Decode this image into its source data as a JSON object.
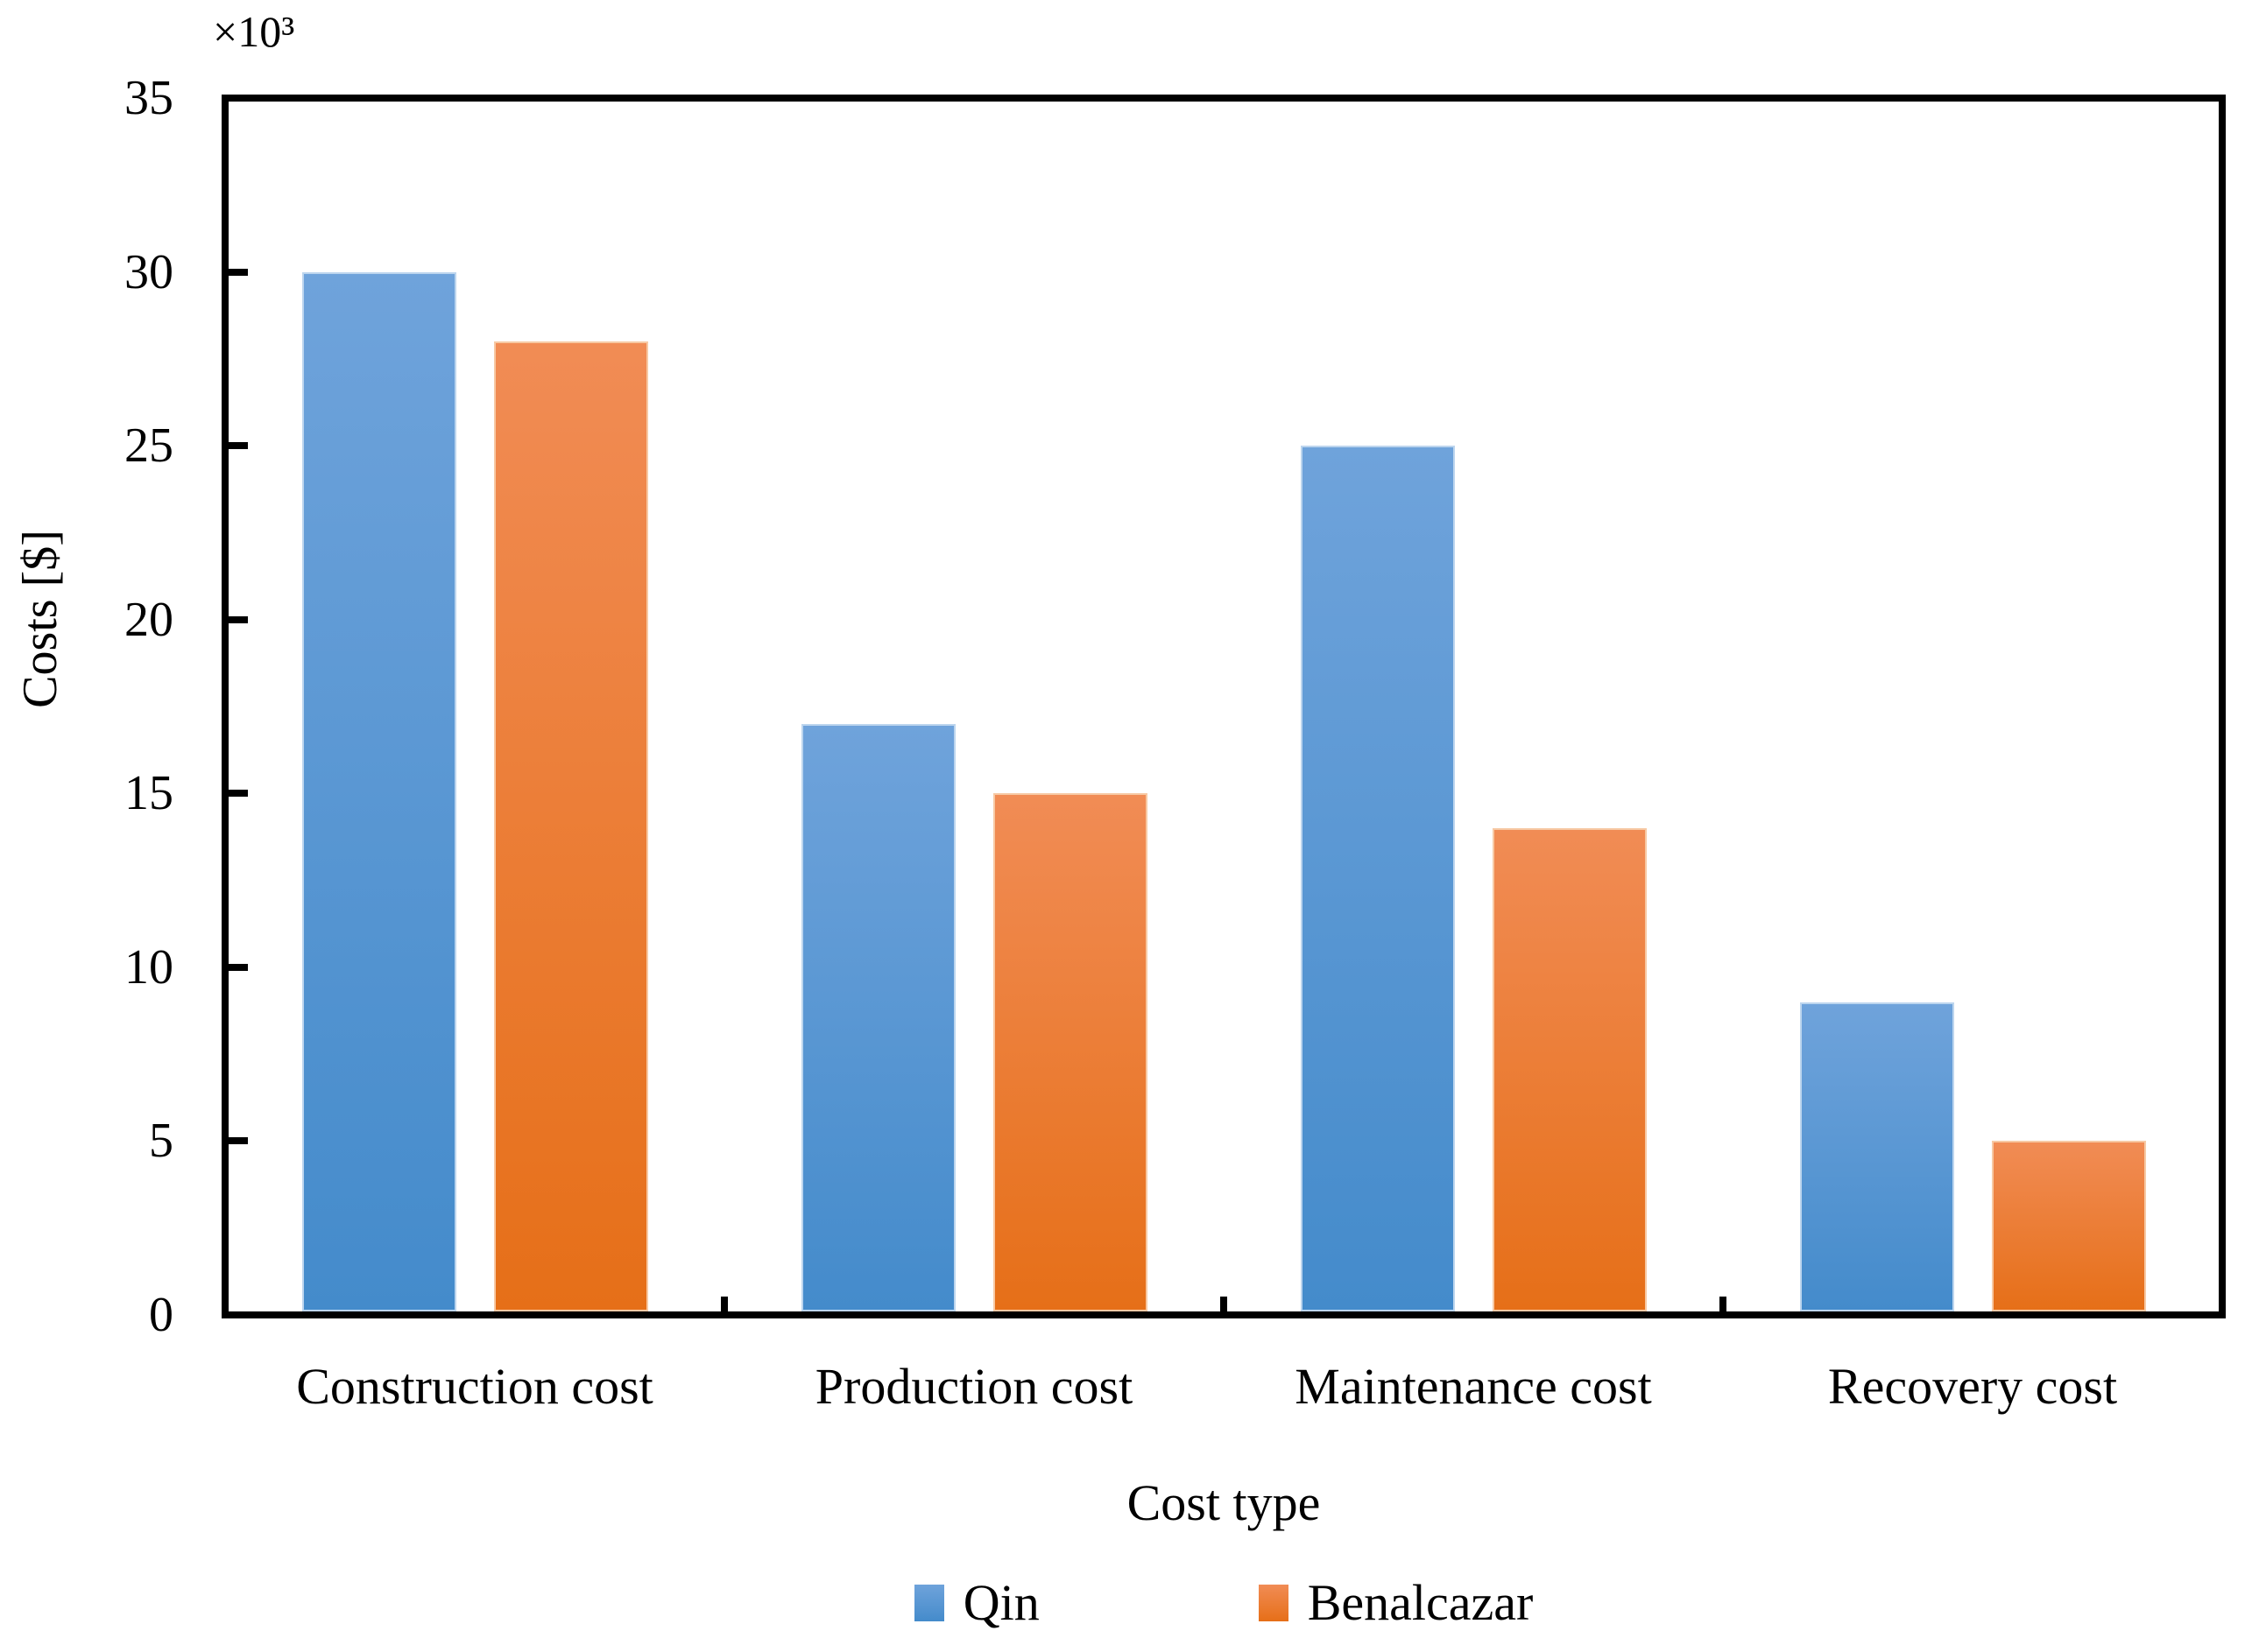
{
  "chart_data": {
    "type": "bar",
    "title": "",
    "categories": [
      "Construction cost",
      "Production cost",
      "Maintenance cost",
      "Recovery cost"
    ],
    "series": [
      {
        "name": "Qin",
        "values": [
          30,
          17,
          25,
          9
        ],
        "color": "#5B9BD5"
      },
      {
        "name": "Benalcazar",
        "values": [
          28,
          15,
          14,
          5
        ],
        "color": "#ED7D31"
      }
    ],
    "values_unit": "thousand $",
    "axis_multiplier_label": "×10³",
    "xlabel": "Cost type",
    "ylabel": "Costs [$]",
    "ylim": [
      0,
      35
    ],
    "yticks": [
      0,
      5,
      10,
      15,
      20,
      25,
      30,
      35
    ],
    "grid": "off",
    "legend_position": "bottom",
    "legend_entries": [
      "Qin",
      "Benalcazar"
    ],
    "colors": {
      "qin_blue": "#5B9BD5",
      "qin_blue_gradient_top": "#6FA3DB",
      "qin_blue_gradient_bottom": "#448BCB",
      "benalcazar_orange": "#ED7D31",
      "benalcazar_orange_gradient_top": "#F18C55",
      "benalcazar_orange_gradient_bottom": "#E66F18",
      "axis": "#000000",
      "text": "#000000"
    }
  }
}
